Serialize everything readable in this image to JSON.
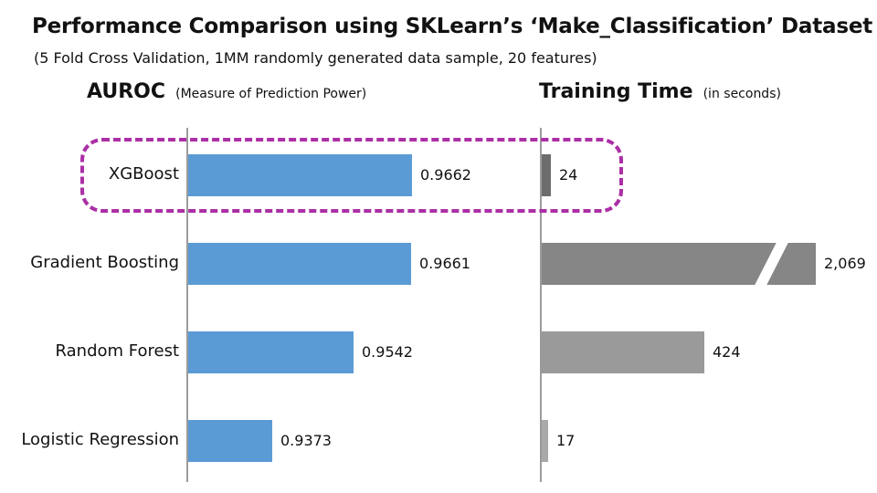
{
  "title": "Performance Comparison using SKLearn’s ‘Make_Classification’ Dataset",
  "subtitle": "(5 Fold Cross Validation, 1MM randomly generated data sample, 20 features)",
  "panels": {
    "auroc": {
      "title": "AUROC",
      "subtitle": "(Measure of Prediction Power)"
    },
    "training_time": {
      "title": "Training Time",
      "subtitle": "(in seconds)"
    }
  },
  "colors": {
    "auroc_bar": "#5b9bd5",
    "training_bars": [
      "#6d6d6d",
      "#868686",
      "#9a9a9a",
      "#a9a9a9"
    ],
    "axis_line": "#9b9b9b",
    "highlight": "#ab2fa5",
    "text": "#111111"
  },
  "chart_data": {
    "type": "bar",
    "orientation": "horizontal",
    "title": "Performance Comparison using SKLearn’s ‘Make_Classification’ Dataset",
    "subtitle": "(5 Fold Cross Validation, 1MM randomly generated data sample, 20 features)",
    "grid": false,
    "legend": false,
    "categories": [
      "XGBoost",
      "Gradient Boosting",
      "Random Forest",
      "Logistic Regression"
    ],
    "series": [
      {
        "name": "AUROC (Measure of Prediction Power)",
        "values": [
          0.9662,
          0.9661,
          0.9542,
          0.9373
        ],
        "labels": [
          "0.9662",
          "0.9661",
          "0.9542",
          "0.9373"
        ],
        "axis": {
          "min": 0.92,
          "max": 0.9662
        }
      },
      {
        "name": "Training Time (in seconds)",
        "values": [
          24,
          2069,
          424,
          17
        ],
        "labels": [
          "24",
          "2,069",
          "424",
          "17"
        ],
        "axis_break": {
          "category": "Gradient Boosting",
          "note": "bar truncated with white slash break mark"
        }
      }
    ],
    "highlight": {
      "category": "XGBoost",
      "style": "purple dashed rounded rectangle spanning both panels"
    }
  }
}
